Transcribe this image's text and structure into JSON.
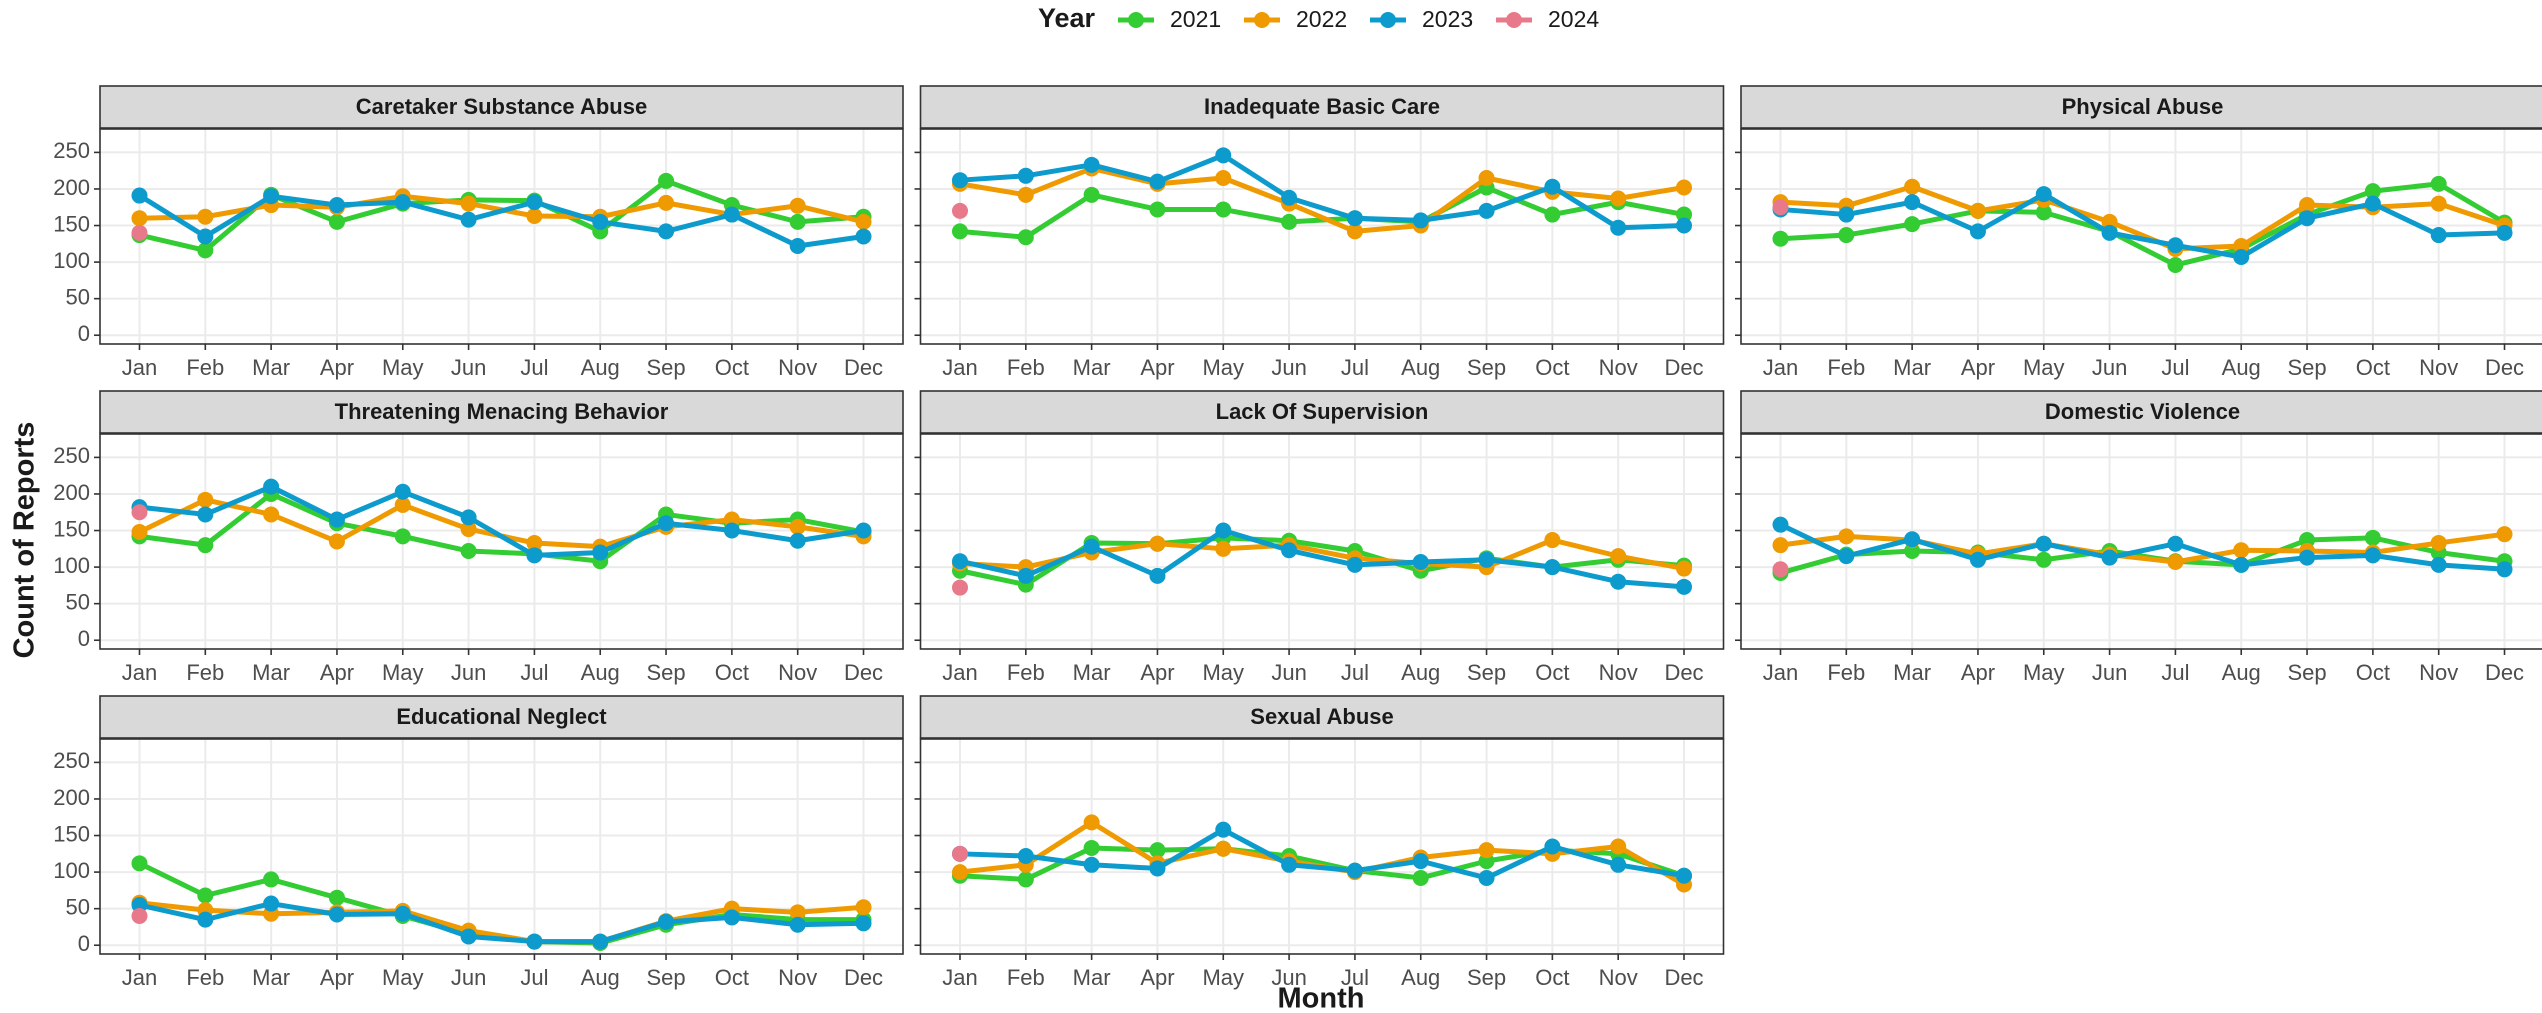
{
  "legend_title": "Year",
  "x_label": "Month",
  "y_label": "Count of Reports",
  "chart_data": [
    {
      "type": "line",
      "title": "Caretaker Substance Abuse",
      "categories": [
        "Jan",
        "Feb",
        "Mar",
        "Apr",
        "May",
        "Jun",
        "Jul",
        "Aug",
        "Sep",
        "Oct",
        "Nov",
        "Dec"
      ],
      "ylim": [
        -12,
        282
      ],
      "yticks": [
        0,
        50,
        100,
        150,
        200,
        250
      ],
      "grid": true,
      "series": [
        {
          "name": "2021",
          "color": "#33cc33",
          "values": [
            137,
            116,
            192,
            155,
            180,
            185,
            184,
            142,
            211,
            178,
            155,
            162
          ]
        },
        {
          "name": "2022",
          "color": "#ee9a00",
          "values": [
            160,
            162,
            178,
            175,
            190,
            180,
            163,
            162,
            181,
            165,
            177,
            155
          ]
        },
        {
          "name": "2023",
          "color": "#0c9bcc",
          "values": [
            191,
            135,
            190,
            178,
            182,
            158,
            182,
            155,
            142,
            165,
            122,
            135
          ]
        },
        {
          "name": "2024",
          "color": "#e8798a",
          "values": [
            140,
            null,
            null,
            null,
            null,
            null,
            null,
            null,
            null,
            null,
            null,
            null
          ]
        }
      ]
    },
    {
      "type": "line",
      "title": "Inadequate Basic Care",
      "categories": [
        "Jan",
        "Feb",
        "Mar",
        "Apr",
        "May",
        "Jun",
        "Jul",
        "Aug",
        "Sep",
        "Oct",
        "Nov",
        "Dec"
      ],
      "ylim": [
        -12,
        282
      ],
      "yticks": [
        0,
        50,
        100,
        150,
        200,
        250
      ],
      "grid": true,
      "series": [
        {
          "name": "2021",
          "color": "#33cc33",
          "values": [
            142,
            134,
            192,
            172,
            172,
            155,
            160,
            155,
            202,
            165,
            182,
            165
          ]
        },
        {
          "name": "2022",
          "color": "#ee9a00",
          "values": [
            207,
            192,
            228,
            207,
            215,
            180,
            142,
            150,
            215,
            196,
            187,
            202
          ]
        },
        {
          "name": "2023",
          "color": "#0c9bcc",
          "values": [
            212,
            218,
            233,
            210,
            246,
            188,
            160,
            157,
            170,
            203,
            147,
            150
          ]
        },
        {
          "name": "2024",
          "color": "#e8798a",
          "values": [
            170,
            null,
            null,
            null,
            null,
            null,
            null,
            null,
            null,
            null,
            null,
            null
          ]
        }
      ]
    },
    {
      "type": "line",
      "title": "Physical Abuse",
      "categories": [
        "Jan",
        "Feb",
        "Mar",
        "Apr",
        "May",
        "Jun",
        "Jul",
        "Aug",
        "Sep",
        "Oct",
        "Nov",
        "Dec"
      ],
      "ylim": [
        -12,
        282
      ],
      "yticks": [
        0,
        50,
        100,
        150,
        200,
        250
      ],
      "grid": true,
      "series": [
        {
          "name": "2021",
          "color": "#33cc33",
          "values": [
            132,
            137,
            152,
            170,
            168,
            142,
            96,
            118,
            165,
            197,
            207,
            154
          ]
        },
        {
          "name": "2022",
          "color": "#ee9a00",
          "values": [
            182,
            177,
            203,
            170,
            185,
            155,
            118,
            122,
            178,
            175,
            180,
            150
          ]
        },
        {
          "name": "2023",
          "color": "#0c9bcc",
          "values": [
            172,
            165,
            182,
            142,
            193,
            140,
            123,
            107,
            160,
            180,
            137,
            140
          ]
        },
        {
          "name": "2024",
          "color": "#e8798a",
          "values": [
            175,
            null,
            null,
            null,
            null,
            null,
            null,
            null,
            null,
            null,
            null,
            null
          ]
        }
      ]
    },
    {
      "type": "line",
      "title": "Threatening Menacing Behavior",
      "categories": [
        "Jan",
        "Feb",
        "Mar",
        "Apr",
        "May",
        "Jun",
        "Jul",
        "Aug",
        "Sep",
        "Oct",
        "Nov",
        "Dec"
      ],
      "ylim": [
        -12,
        282
      ],
      "yticks": [
        0,
        50,
        100,
        150,
        200,
        250
      ],
      "grid": true,
      "series": [
        {
          "name": "2021",
          "color": "#33cc33",
          "values": [
            142,
            130,
            200,
            160,
            142,
            122,
            118,
            108,
            172,
            160,
            165,
            148
          ]
        },
        {
          "name": "2022",
          "color": "#ee9a00",
          "values": [
            148,
            192,
            172,
            135,
            185,
            152,
            133,
            128,
            155,
            165,
            155,
            142
          ]
        },
        {
          "name": "2023",
          "color": "#0c9bcc",
          "values": [
            182,
            172,
            210,
            165,
            203,
            168,
            116,
            120,
            160,
            150,
            136,
            150
          ]
        },
        {
          "name": "2024",
          "color": "#e8798a",
          "values": [
            175,
            null,
            null,
            null,
            null,
            null,
            null,
            null,
            null,
            null,
            null,
            null
          ]
        }
      ]
    },
    {
      "type": "line",
      "title": "Lack Of Supervision",
      "categories": [
        "Jan",
        "Feb",
        "Mar",
        "Apr",
        "May",
        "Jun",
        "Jul",
        "Aug",
        "Sep",
        "Oct",
        "Nov",
        "Dec"
      ],
      "ylim": [
        -12,
        282
      ],
      "yticks": [
        0,
        50,
        100,
        150,
        200,
        250
      ],
      "grid": true,
      "series": [
        {
          "name": "2021",
          "color": "#33cc33",
          "values": [
            95,
            76,
            133,
            132,
            140,
            136,
            122,
            95,
            112,
            100,
            110,
            102
          ]
        },
        {
          "name": "2022",
          "color": "#ee9a00",
          "values": [
            105,
            100,
            120,
            132,
            125,
            130,
            112,
            105,
            100,
            137,
            115,
            98
          ]
        },
        {
          "name": "2023",
          "color": "#0c9bcc",
          "values": [
            108,
            88,
            128,
            88,
            150,
            123,
            103,
            107,
            110,
            100,
            80,
            73
          ]
        },
        {
          "name": "2024",
          "color": "#e8798a",
          "values": [
            72,
            null,
            null,
            null,
            null,
            null,
            null,
            null,
            null,
            null,
            null,
            null
          ]
        }
      ]
    },
    {
      "type": "line",
      "title": "Domestic Violence",
      "categories": [
        "Jan",
        "Feb",
        "Mar",
        "Apr",
        "May",
        "Jun",
        "Jul",
        "Aug",
        "Sep",
        "Oct",
        "Nov",
        "Dec"
      ],
      "ylim": [
        -12,
        282
      ],
      "yticks": [
        0,
        50,
        100,
        150,
        200,
        250
      ],
      "grid": true,
      "series": [
        {
          "name": "2021",
          "color": "#33cc33",
          "values": [
            92,
            117,
            122,
            120,
            110,
            122,
            108,
            103,
            137,
            140,
            120,
            108
          ]
        },
        {
          "name": "2022",
          "color": "#ee9a00",
          "values": [
            130,
            142,
            137,
            118,
            132,
            117,
            107,
            123,
            122,
            120,
            133,
            145
          ]
        },
        {
          "name": "2023",
          "color": "#0c9bcc",
          "values": [
            158,
            115,
            138,
            110,
            132,
            113,
            132,
            103,
            113,
            116,
            103,
            97
          ]
        },
        {
          "name": "2024",
          "color": "#e8798a",
          "values": [
            97,
            null,
            null,
            null,
            null,
            null,
            null,
            null,
            null,
            null,
            null,
            null
          ]
        }
      ]
    },
    {
      "type": "line",
      "title": "Educational Neglect",
      "categories": [
        "Jan",
        "Feb",
        "Mar",
        "Apr",
        "May",
        "Jun",
        "Jul",
        "Aug",
        "Sep",
        "Oct",
        "Nov",
        "Dec"
      ],
      "ylim": [
        -12,
        282
      ],
      "yticks": [
        0,
        50,
        100,
        150,
        200,
        250
      ],
      "grid": true,
      "series": [
        {
          "name": "2021",
          "color": "#33cc33",
          "values": [
            112,
            68,
            90,
            65,
            40,
            15,
            5,
            3,
            28,
            42,
            35,
            35
          ]
        },
        {
          "name": "2022",
          "color": "#ee9a00",
          "values": [
            58,
            48,
            43,
            45,
            47,
            20,
            5,
            5,
            33,
            50,
            45,
            52
          ]
        },
        {
          "name": "2023",
          "color": "#0c9bcc",
          "values": [
            55,
            35,
            57,
            42,
            43,
            12,
            5,
            5,
            32,
            38,
            28,
            30
          ]
        },
        {
          "name": "2024",
          "color": "#e8798a",
          "values": [
            40,
            null,
            null,
            null,
            null,
            null,
            null,
            null,
            null,
            null,
            null,
            null
          ]
        }
      ]
    },
    {
      "type": "line",
      "title": "Sexual Abuse",
      "categories": [
        "Jan",
        "Feb",
        "Mar",
        "Apr",
        "May",
        "Jun",
        "Jul",
        "Aug",
        "Sep",
        "Oct",
        "Nov",
        "Dec"
      ],
      "ylim": [
        -12,
        282
      ],
      "yticks": [
        0,
        50,
        100,
        150,
        200,
        250
      ],
      "grid": true,
      "series": [
        {
          "name": "2021",
          "color": "#33cc33",
          "values": [
            95,
            90,
            133,
            130,
            132,
            122,
            102,
            92,
            115,
            130,
            125,
            95
          ]
        },
        {
          "name": "2022",
          "color": "#ee9a00",
          "values": [
            100,
            110,
            168,
            112,
            132,
            115,
            100,
            120,
            130,
            125,
            135,
            83
          ]
        },
        {
          "name": "2023",
          "color": "#0c9bcc",
          "values": [
            125,
            122,
            110,
            105,
            158,
            110,
            102,
            115,
            92,
            135,
            110,
            95
          ]
        },
        {
          "name": "2024",
          "color": "#e8798a",
          "values": [
            125,
            null,
            null,
            null,
            null,
            null,
            null,
            null,
            null,
            null,
            null,
            null
          ]
        }
      ]
    }
  ]
}
